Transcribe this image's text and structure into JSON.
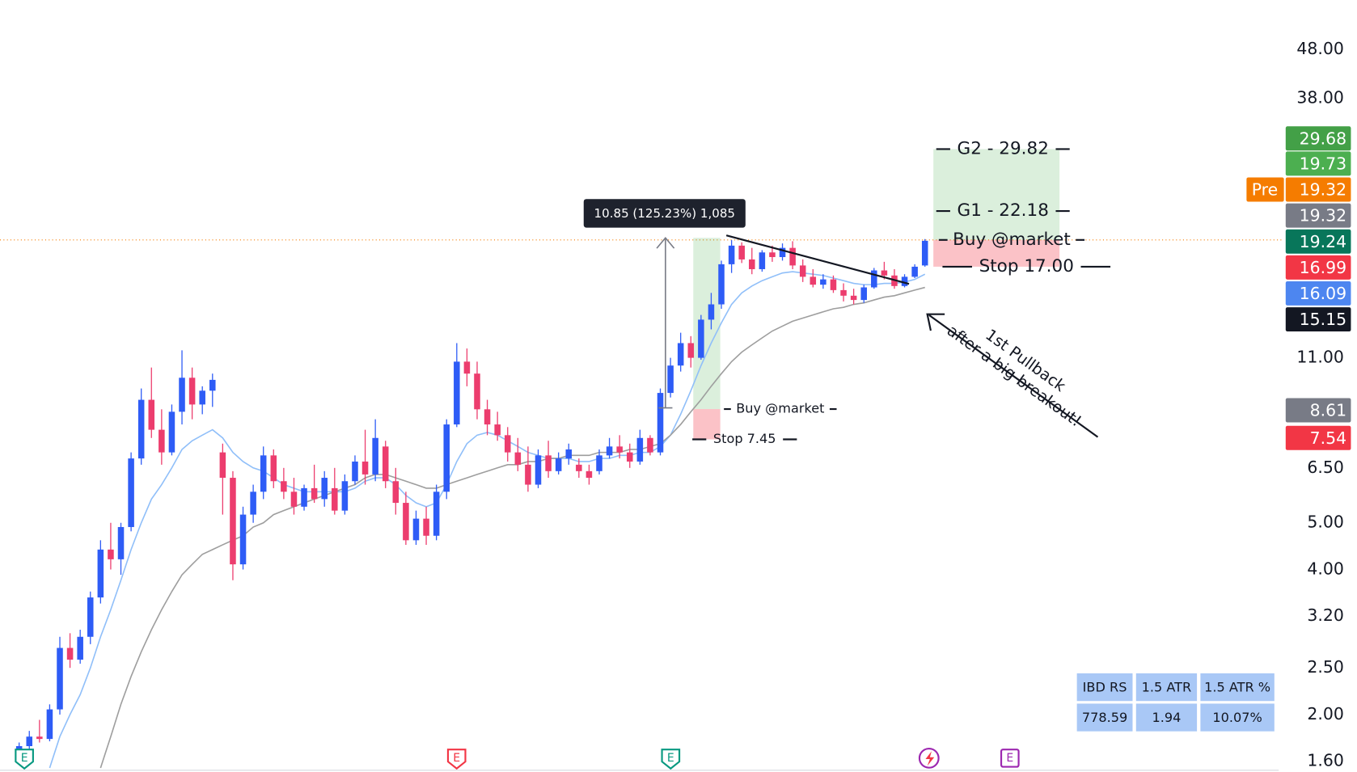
{
  "chart_data": {
    "type": "candlestick",
    "ylim": [
      1.52,
      60.8
    ],
    "log_scale": true,
    "grid": false,
    "up_color": "#2e5cf6",
    "down_color": "#ec3d6e",
    "yticks": [
      {
        "value": 48,
        "label": "48.00"
      },
      {
        "value": 38,
        "label": "38.00"
      },
      {
        "value": 11,
        "label": "11.00"
      },
      {
        "value": 6.5,
        "label": "6.50"
      },
      {
        "value": 5,
        "label": "5.00"
      },
      {
        "value": 4,
        "label": "4.00"
      },
      {
        "value": 3.2,
        "label": "3.20"
      },
      {
        "value": 2.5,
        "label": "2.50"
      },
      {
        "value": 2,
        "label": "2.00"
      },
      {
        "value": 1.6,
        "label": "1.60"
      }
    ],
    "candles": [
      [
        1.65,
        1.75,
        1.6,
        1.72
      ],
      [
        1.72,
        1.85,
        1.68,
        1.8
      ],
      [
        1.8,
        1.95,
        1.75,
        1.78
      ],
      [
        1.78,
        2.1,
        1.76,
        2.05
      ],
      [
        2.05,
        2.9,
        2.0,
        2.75
      ],
      [
        2.75,
        2.95,
        2.5,
        2.6
      ],
      [
        2.6,
        3.0,
        2.55,
        2.9
      ],
      [
        2.9,
        3.6,
        2.8,
        3.5
      ],
      [
        3.5,
        4.6,
        3.4,
        4.4
      ],
      [
        4.4,
        5.0,
        4.0,
        4.2
      ],
      [
        4.2,
        5.0,
        3.9,
        4.9
      ],
      [
        4.9,
        7.0,
        4.8,
        6.8
      ],
      [
        6.8,
        9.5,
        6.6,
        9.0
      ],
      [
        9.0,
        10.5,
        7.5,
        7.8
      ],
      [
        7.8,
        8.6,
        6.6,
        7.0
      ],
      [
        7.0,
        8.8,
        6.9,
        8.5
      ],
      [
        8.5,
        11.4,
        8.0,
        10.0
      ],
      [
        10.0,
        10.5,
        8.2,
        8.8
      ],
      [
        8.8,
        9.6,
        8.4,
        9.4
      ],
      [
        9.4,
        10.2,
        8.7,
        9.9
      ],
      [
        7.0,
        7.3,
        5.2,
        6.2
      ],
      [
        6.2,
        6.4,
        3.8,
        4.1
      ],
      [
        4.1,
        5.4,
        4.0,
        5.2
      ],
      [
        5.2,
        6.0,
        5.0,
        5.8
      ],
      [
        5.8,
        7.2,
        5.6,
        6.9
      ],
      [
        6.9,
        7.1,
        5.9,
        6.1
      ],
      [
        6.1,
        6.5,
        5.6,
        5.8
      ],
      [
        5.8,
        6.2,
        5.2,
        5.4
      ],
      [
        5.4,
        6.0,
        5.3,
        5.9
      ],
      [
        5.9,
        6.6,
        5.5,
        5.6
      ],
      [
        5.6,
        6.4,
        5.4,
        6.2
      ],
      [
        5.9,
        6.5,
        5.2,
        5.3
      ],
      [
        5.3,
        6.3,
        5.2,
        6.1
      ],
      [
        6.1,
        6.9,
        6.0,
        6.7
      ],
      [
        6.7,
        7.8,
        6.0,
        6.3
      ],
      [
        6.3,
        8.2,
        6.1,
        7.5
      ],
      [
        7.2,
        7.4,
        5.9,
        6.1
      ],
      [
        6.1,
        6.5,
        5.2,
        5.5
      ],
      [
        5.5,
        5.8,
        4.5,
        4.6
      ],
      [
        4.6,
        5.3,
        4.5,
        5.1
      ],
      [
        5.1,
        5.4,
        4.5,
        4.7
      ],
      [
        4.7,
        6.0,
        4.6,
        5.8
      ],
      [
        5.8,
        8.2,
        5.6,
        8.0
      ],
      [
        8.0,
        11.8,
        7.9,
        10.8
      ],
      [
        10.8,
        11.5,
        9.6,
        10.2
      ],
      [
        10.2,
        10.8,
        8.2,
        8.6
      ],
      [
        8.6,
        9.0,
        7.6,
        8.0
      ],
      [
        8.0,
        8.5,
        7.4,
        7.6
      ],
      [
        7.6,
        7.9,
        6.7,
        7.0
      ],
      [
        7.0,
        7.5,
        6.4,
        6.6
      ],
      [
        6.6,
        7.2,
        5.8,
        6.0
      ],
      [
        6.0,
        7.1,
        5.9,
        6.9
      ],
      [
        6.9,
        7.4,
        6.2,
        6.4
      ],
      [
        6.4,
        7.0,
        6.3,
        6.8
      ],
      [
        6.8,
        7.3,
        6.6,
        7.1
      ],
      [
        6.6,
        6.8,
        6.2,
        6.4
      ],
      [
        6.4,
        6.6,
        6.0,
        6.2
      ],
      [
        6.4,
        7.1,
        6.3,
        6.9
      ],
      [
        6.9,
        7.5,
        6.8,
        7.2
      ],
      [
        7.2,
        7.6,
        6.8,
        7.0
      ],
      [
        7.0,
        7.3,
        6.5,
        6.7
      ],
      [
        6.7,
        7.8,
        6.6,
        7.5
      ],
      [
        7.5,
        7.6,
        6.9,
        7.0
      ],
      [
        7.0,
        9.5,
        6.9,
        9.3
      ],
      [
        9.3,
        11.0,
        9.1,
        10.6
      ],
      [
        10.6,
        12.4,
        10.3,
        11.8
      ],
      [
        11.8,
        12.2,
        10.5,
        11.0
      ],
      [
        11.0,
        13.5,
        10.9,
        13.2
      ],
      [
        13.2,
        15.0,
        12.6,
        14.2
      ],
      [
        14.2,
        17.5,
        13.9,
        17.2
      ],
      [
        17.2,
        19.3,
        16.5,
        18.8
      ],
      [
        18.8,
        19.1,
        17.3,
        17.6
      ],
      [
        17.6,
        18.6,
        16.4,
        16.8
      ],
      [
        16.8,
        18.4,
        16.6,
        18.2
      ],
      [
        18.2,
        18.8,
        17.4,
        17.8
      ],
      [
        17.8,
        19.0,
        17.5,
        18.6
      ],
      [
        18.6,
        19.2,
        16.8,
        17.1
      ],
      [
        17.1,
        17.6,
        15.8,
        16.2
      ],
      [
        16.2,
        16.8,
        15.4,
        15.6
      ],
      [
        15.6,
        16.4,
        15.3,
        16.0
      ],
      [
        16.0,
        16.3,
        15.0,
        15.2
      ],
      [
        15.2,
        15.7,
        14.4,
        14.8
      ],
      [
        14.8,
        15.3,
        14.2,
        14.5
      ],
      [
        14.5,
        15.6,
        14.3,
        15.4
      ],
      [
        15.4,
        16.9,
        15.3,
        16.7
      ],
      [
        16.7,
        17.4,
        16.0,
        16.3
      ],
      [
        16.3,
        16.8,
        15.3,
        15.5
      ],
      [
        15.5,
        16.4,
        15.4,
        16.2
      ],
      [
        16.2,
        17.2,
        16.1,
        17.0
      ],
      [
        17.1,
        19.4,
        17.0,
        19.24
      ]
    ],
    "series": [
      {
        "color": "#90bff9",
        "values": [
          null,
          null,
          null,
          1.55,
          1.8,
          2.0,
          2.2,
          2.5,
          2.9,
          3.3,
          3.8,
          4.4,
          5.0,
          5.6,
          6.0,
          6.5,
          7.1,
          7.4,
          7.6,
          7.8,
          7.5,
          7.0,
          6.7,
          6.5,
          6.4,
          6.2,
          6.0,
          5.9,
          5.8,
          5.8,
          5.8,
          5.8,
          5.8,
          5.9,
          6.1,
          6.2,
          6.2,
          6.0,
          5.7,
          5.5,
          5.4,
          5.5,
          6.0,
          6.7,
          7.3,
          7.6,
          7.7,
          7.6,
          7.4,
          7.2,
          7.0,
          6.9,
          6.8,
          6.8,
          6.8,
          6.7,
          6.7,
          6.8,
          6.8,
          6.9,
          6.9,
          7.0,
          7.0,
          7.2,
          7.6,
          8.4,
          9.4,
          10.6,
          11.8,
          13.0,
          14.2,
          15.0,
          15.5,
          15.9,
          16.2,
          16.5,
          16.6,
          16.5,
          16.4,
          16.3,
          16.1,
          15.9,
          15.7,
          15.6,
          15.6,
          15.7,
          15.7,
          15.8,
          16.0,
          16.4
        ]
      },
      {
        "color": "#9e9e9e",
        "values": [
          null,
          null,
          null,
          null,
          null,
          null,
          null,
          null,
          1.55,
          1.8,
          2.1,
          2.4,
          2.7,
          3.0,
          3.3,
          3.6,
          3.9,
          4.1,
          4.3,
          4.4,
          4.5,
          4.6,
          4.7,
          4.9,
          5.0,
          5.2,
          5.3,
          5.4,
          5.5,
          5.6,
          5.7,
          5.8,
          5.9,
          6.0,
          6.2,
          6.3,
          6.3,
          6.2,
          6.1,
          6.0,
          5.9,
          5.9,
          6.0,
          6.1,
          6.2,
          6.3,
          6.4,
          6.5,
          6.6,
          6.6,
          6.7,
          6.7,
          6.8,
          6.8,
          6.9,
          6.9,
          6.9,
          7.0,
          7.0,
          7.0,
          7.1,
          7.1,
          7.2,
          7.3,
          7.6,
          8.0,
          8.5,
          9.0,
          9.6,
          10.2,
          10.8,
          11.3,
          11.7,
          12.1,
          12.5,
          12.8,
          13.1,
          13.3,
          13.5,
          13.7,
          13.9,
          14.0,
          14.2,
          14.3,
          14.5,
          14.7,
          14.8,
          15.0,
          15.2,
          15.4
        ]
      }
    ],
    "badges": [
      {
        "value": 29.68,
        "color": "#43a047"
      },
      {
        "value": 19.73,
        "color": "#4caf50"
      },
      {
        "value": 19.32,
        "color": "#f57c00",
        "tag": "Pre"
      },
      {
        "value": 19.32,
        "color": "#787b86"
      },
      {
        "value": 19.24,
        "color": "#08765a"
      },
      {
        "value": 16.99,
        "color": "#f23645"
      },
      {
        "value": 16.09,
        "color": "#4d86f0"
      },
      {
        "value": 15.15,
        "color": "#131722"
      },
      {
        "value": 8.61,
        "color": "#787b86"
      },
      {
        "value": 7.54,
        "color": "#f23645"
      }
    ],
    "measure": {
      "from": 8.66,
      "to": 19.51,
      "label": "10.85 (125.23%) 1,085"
    },
    "positions": [
      {
        "entry": 8.61,
        "stop": 7.45,
        "target": 19.51,
        "entry_label": "Buy @market",
        "stop_label": "Stop 7.45"
      },
      {
        "entry": 19.32,
        "stop": 17.0,
        "target": 29.82,
        "entry_label": "Buy @market",
        "stop_label": "Stop 17.00",
        "goals": [
          {
            "label": "G1 - 22.18",
            "value": 22.18
          },
          {
            "label": "G2 - 29.82",
            "value": 29.82
          }
        ]
      }
    ],
    "annotation": [
      "1st Pullback",
      "after a big breakout!"
    ],
    "events": [
      "E",
      "E",
      "E",
      "E"
    ],
    "table": {
      "header": [
        "IBD RS",
        "1.5 ATR",
        "1.5 ATR %"
      ],
      "rows": [
        [
          778.59,
          1.94,
          "10.07%"
        ]
      ]
    }
  }
}
